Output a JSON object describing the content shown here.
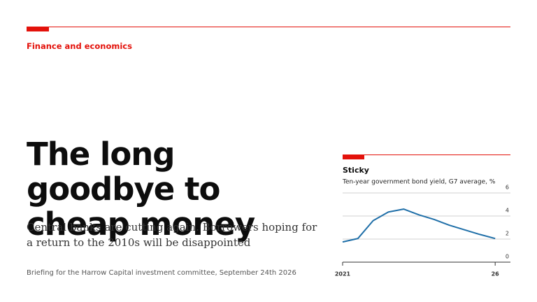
{
  "section": "Finance and economics",
  "headline": "The long goodbye to cheap money",
  "standfirst": "Central banks are cutting again. Borrowers hoping for a return to the 2010s will be disappointed",
  "byline": "Briefing for the Harrow Capital investment committee, September 24th 2026",
  "chart_data": {
    "type": "line",
    "title": "Sticky",
    "subtitle": "Ten-year government bond yield, G7 average, %",
    "x": [
      2021,
      2021.5,
      2022,
      2022.5,
      2023,
      2023.5,
      2024,
      2024.5,
      2025,
      2025.5,
      2026
    ],
    "series": [
      {
        "name": "G7 average",
        "color": "#1f6fa8",
        "values": [
          1.75,
          2.05,
          3.6,
          4.35,
          4.6,
          4.1,
          3.7,
          3.2,
          2.8,
          2.4,
          2.05
        ]
      }
    ],
    "xlim": [
      2021,
      2026.5
    ],
    "xticks": [
      2021,
      {
        "value": 2026,
        "label": "26"
      }
    ],
    "ylim": [
      0,
      6
    ],
    "yticks": [
      0,
      2,
      4,
      6
    ],
    "grid": true
  }
}
